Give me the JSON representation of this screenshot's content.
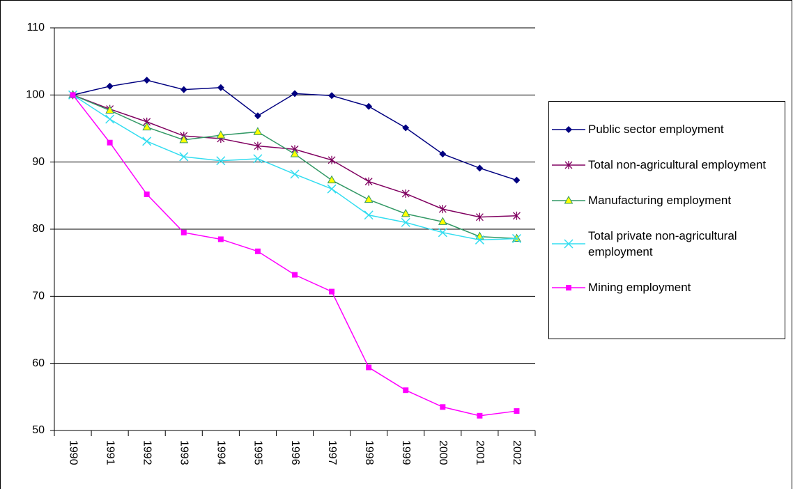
{
  "chart_data": {
    "type": "line",
    "categories": [
      "1990",
      "1991",
      "1992",
      "1993",
      "1994",
      "1995",
      "1996",
      "1997",
      "1998",
      "1999",
      "2000",
      "2001",
      "2002"
    ],
    "ylim": [
      50,
      110
    ],
    "yticks": [
      50,
      60,
      70,
      80,
      90,
      100,
      110
    ],
    "grid": true,
    "legend": "right",
    "series": [
      {
        "name": "Public sector employment",
        "color": "#000080",
        "marker": "diamond",
        "values": [
          100,
          101.3,
          102.2,
          100.8,
          101.1,
          96.9,
          100.2,
          99.9,
          98.3,
          95.1,
          91.2,
          89.1,
          87.3
        ]
      },
      {
        "name": "Total non-agricultural employment",
        "color": "#800060",
        "marker": "star",
        "values": [
          100,
          97.9,
          96.0,
          93.9,
          93.5,
          92.4,
          91.9,
          90.3,
          87.1,
          85.3,
          83.0,
          81.8,
          82.0
        ]
      },
      {
        "name": "Manufacturing employment",
        "color": "#339966",
        "marker": "triangle",
        "values": [
          100,
          97.7,
          95.2,
          93.3,
          94.0,
          94.5,
          91.2,
          87.3,
          84.4,
          82.3,
          81.1,
          78.9,
          78.6
        ]
      },
      {
        "name": "Total private non-agricultural employment",
        "color": "#33ddf0",
        "marker": "cross",
        "values": [
          100,
          96.4,
          93.1,
          90.8,
          90.2,
          90.5,
          88.2,
          86.0,
          82.1,
          81.0,
          79.5,
          78.4,
          78.6
        ]
      },
      {
        "name": "Mining employment",
        "color": "#ff00ff",
        "marker": "square",
        "values": [
          100,
          92.9,
          85.2,
          79.5,
          78.5,
          76.7,
          73.2,
          70.7,
          59.4,
          56.0,
          53.5,
          52.2,
          52.9
        ]
      }
    ]
  }
}
